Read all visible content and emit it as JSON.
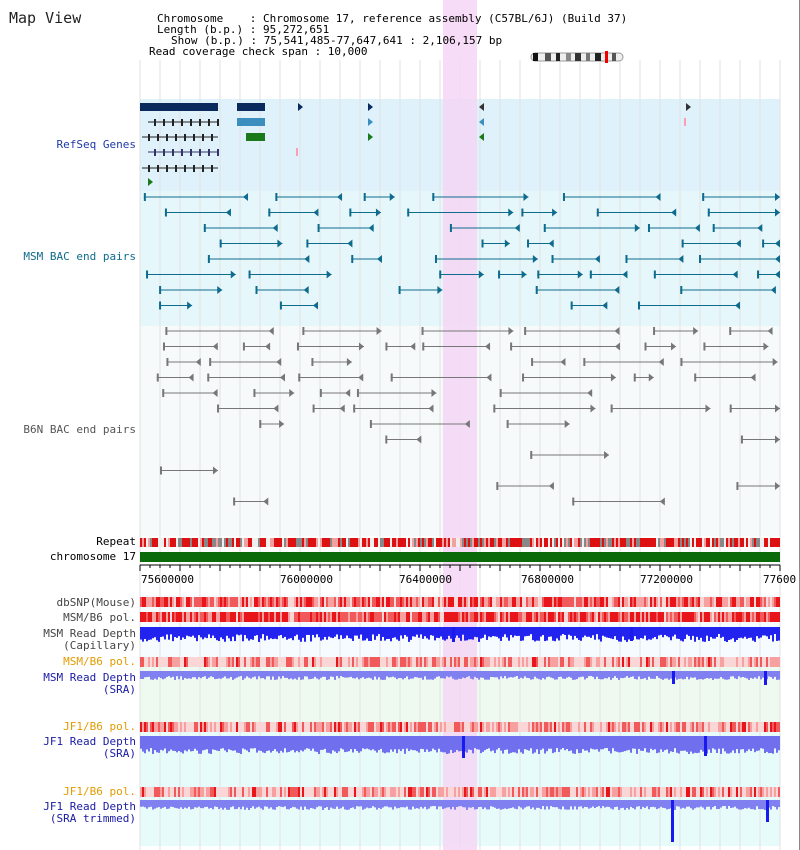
{
  "header": {
    "title": "Map View",
    "chromosome_line": "Chromosome    : Chromosome 17, reference assembly (C57BL/6J) (Build 37)",
    "length_line": "Length (b.p.) : 95,272,651",
    "show_line": "Show (b.p.) : 75,541,485-77,647,641 : 2,106,157 bp",
    "coverage_line": "Read coverage check span : 10,000"
  },
  "tracks": {
    "refseq": "RefSeq Genes",
    "msm_bac": "MSM BAC end pairs",
    "b6n_bac": "B6N BAC end pairs",
    "repeat": "Repeat",
    "chromosome": "chromosome 17",
    "dbsnp": "dbSNP(Mouse)",
    "msm_b6_pol": "MSM/B6 pol.",
    "msm_depth_cap": "MSM Read Depth\n(Capillary)",
    "msm_b6_pol2": "MSM/B6 pol.",
    "msm_depth_sra": "MSM Read Depth\n(SRA)",
    "jf1_b6_pol": "JF1/B6 pol.",
    "jf1_depth_sra": "JF1 Read Depth\n(SRA)",
    "jf1_b6_pol2": "JF1/B6 pol.",
    "jf1_depth_trim": "JF1 Read Depth\n(SRA trimmed)"
  },
  "axis": {
    "ticks": [
      "75600000",
      "76000000",
      "76400000",
      "76800000",
      "77200000",
      "77600"
    ]
  },
  "colors": {
    "refseq_label": "#1f3aa8",
    "msm_label": "#0e6b8c",
    "b6n_label": "#555555",
    "pol_label": "#e39b00",
    "depth_label": "#1a1aa6",
    "highlight": "#f4d6f4",
    "gene_dark": "#0a2a5e",
    "gene_mid": "#3a8fbf",
    "gene_green": "#1a7a1a",
    "msm_feature": "#0e6b8c",
    "b6n_feature": "#777777",
    "chromosome_bar": "#0a6a0a",
    "depth_blue": "#1a1af0",
    "depth_light": "#8080f0"
  }
}
